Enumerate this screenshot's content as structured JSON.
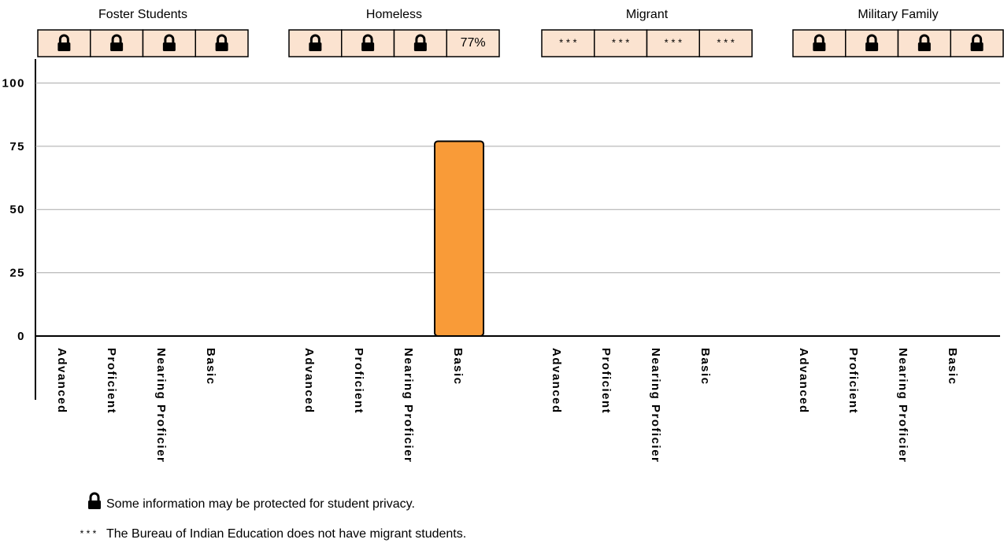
{
  "chart_data": {
    "type": "bar",
    "categories": [
      "Advanced",
      "Proficient",
      "Nearing Proficier",
      "Basic"
    ],
    "series": [
      {
        "name": "Foster Students",
        "color": "#f99b38",
        "values": [
          null,
          null,
          null,
          null
        ],
        "value_labels": [
          null,
          null,
          null,
          null
        ]
      },
      {
        "name": "Homeless",
        "color": "#f99b38",
        "values": [
          null,
          null,
          null,
          77
        ],
        "value_labels": [
          null,
          null,
          null,
          "77%"
        ]
      },
      {
        "name": "Migrant",
        "color": "#f99b38",
        "values": [
          null,
          null,
          null,
          null
        ],
        "value_labels": [
          "* * *",
          "* * *",
          "* * *",
          "* * *"
        ]
      },
      {
        "name": "Military Family",
        "color": "#f99b38",
        "values": [
          null,
          null,
          null,
          null
        ],
        "value_labels": [
          null,
          null,
          null,
          null
        ]
      }
    ],
    "ylim": [
      0,
      100
    ],
    "yticks": [
      0,
      25,
      50,
      75,
      100
    ],
    "grid": true,
    "notes": [
      {
        "symbol": null,
        "text": "Some information may be protected for student privacy."
      },
      {
        "symbol": "* * *",
        "text": "The Bureau of Indian Education does not have migrant students."
      }
    ]
  }
}
